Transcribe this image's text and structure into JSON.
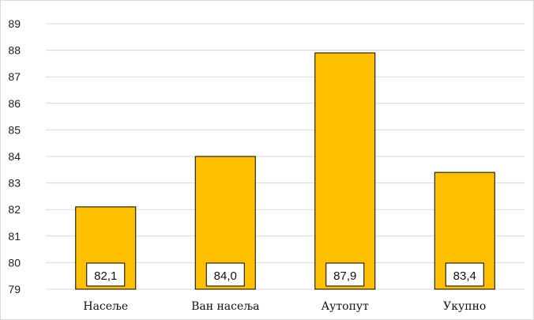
{
  "chart_data": {
    "type": "bar",
    "categories": [
      "Насеље",
      "Ван насеља",
      "Аутопут",
      "Укупно"
    ],
    "values": [
      82.1,
      84.0,
      87.9,
      83.4
    ],
    "data_labels": [
      "82,1",
      "84,0",
      "87,9",
      "83,4"
    ],
    "y_ticks": [
      "79",
      "80",
      "81",
      "82",
      "83",
      "84",
      "85",
      "86",
      "87",
      "88",
      "89"
    ],
    "ylim": [
      79,
      89
    ],
    "grid": true,
    "legend": "none",
    "bar_color": "#FFC000",
    "bar_border_color": "#000000",
    "grid_color": "#D9D9D9",
    "title": "",
    "xlabel": "",
    "ylabel": ""
  }
}
